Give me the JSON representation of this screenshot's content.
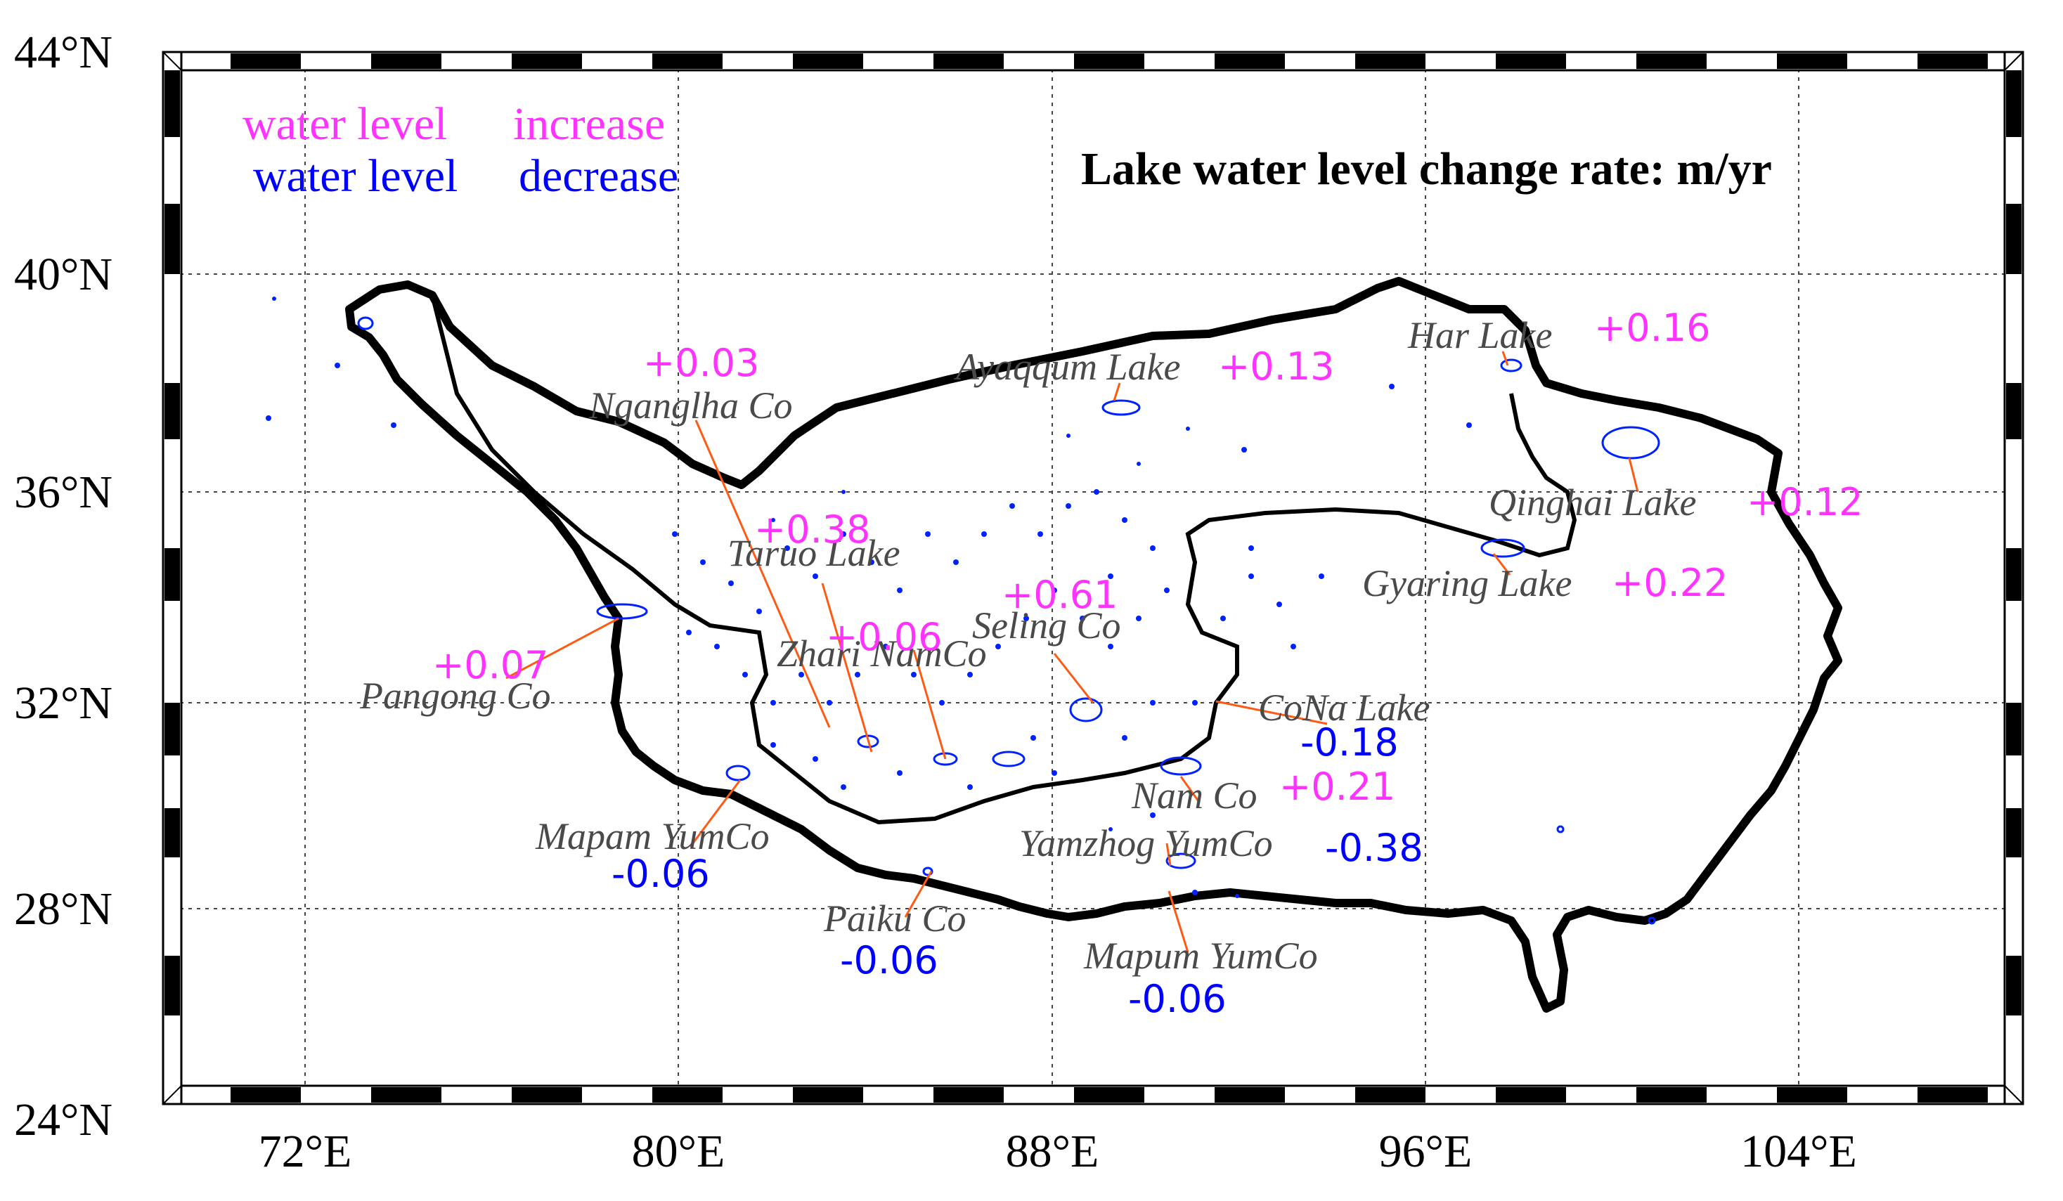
{
  "map": {
    "title": "Lake water level change rate: m/yr",
    "legend": {
      "increase_prefix": "water level",
      "increase_word": "increase",
      "decrease_prefix": "water level",
      "decrease_word": "decrease"
    },
    "colors": {
      "increase": "#ff33ff",
      "decrease": "#0000ff",
      "leader": "#ff5a14",
      "boundary": "#000000",
      "lake_outline": "#0022ff"
    },
    "lat_ticks": [
      "44°N",
      "40°N",
      "36°N",
      "32°N",
      "28°N",
      "24°N"
    ],
    "lon_ticks": [
      "72°E",
      "80°E",
      "88°E",
      "96°E",
      "104°E"
    ],
    "lakes": [
      {
        "name": "Nganglha Co",
        "value": "+0.03",
        "trend": "increase"
      },
      {
        "name": "Ayaqqum Lake",
        "value": "+0.13",
        "trend": "increase"
      },
      {
        "name": "Har Lake",
        "value": "+0.16",
        "trend": "increase"
      },
      {
        "name": "Qinghai Lake",
        "value": "+0.12",
        "trend": "increase"
      },
      {
        "name": "Gyaring Lake",
        "value": "+0.22",
        "trend": "increase"
      },
      {
        "name": "Taruo Lake",
        "value": "+0.38",
        "trend": "increase"
      },
      {
        "name": "Zhari NamCo",
        "value": "+0.06",
        "trend": "increase"
      },
      {
        "name": "Seling Co",
        "value": "+0.61",
        "trend": "increase"
      },
      {
        "name": "Pangong Co",
        "value": "+0.07",
        "trend": "increase"
      },
      {
        "name": "CoNa Lake",
        "value": "-0.18",
        "trend": "decrease"
      },
      {
        "name": "Nam Co",
        "value": "+0.21",
        "trend": "increase"
      },
      {
        "name": "Yamzhog YumCo",
        "value": "-0.38",
        "trend": "decrease"
      },
      {
        "name": "Mapam YumCo",
        "value": "-0.06",
        "trend": "decrease"
      },
      {
        "name": "Paiku Co",
        "value": "-0.06",
        "trend": "decrease"
      },
      {
        "name": "Mapum YumCo",
        "value": "-0.06",
        "trend": "decrease"
      }
    ]
  }
}
